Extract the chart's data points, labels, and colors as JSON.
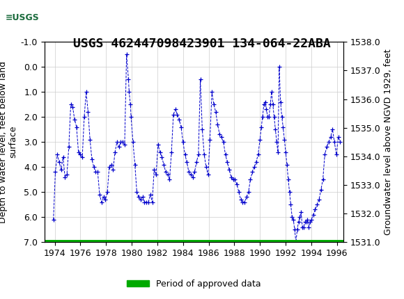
{
  "title": "USGS 462447098423901 134-064-22ABA",
  "ylabel_left": "Depth to water level, feet below land\nsurface",
  "ylabel_right": "Groundwater level above NGVD 1929, feet",
  "ylim_left": [
    7.0,
    -1.0
  ],
  "ylim_right": [
    1531.0,
    1538.0
  ],
  "yticks_left": [
    -1.0,
    0.0,
    1.0,
    2.0,
    3.0,
    4.0,
    5.0,
    6.0,
    7.0
  ],
  "yticks_right": [
    1531.0,
    1532.0,
    1533.0,
    1534.0,
    1535.0,
    1536.0,
    1537.0,
    1538.0
  ],
  "xticks": [
    1974,
    1976,
    1978,
    1980,
    1982,
    1984,
    1986,
    1988,
    1990,
    1992,
    1994,
    1996
  ],
  "xlim": [
    1973.2,
    1996.5
  ],
  "header_color": "#1a6b3c",
  "line_color": "#0000cc",
  "approved_color": "#00aa00",
  "plot_bg_color": "#ffffff",
  "grid_color": "#cccccc",
  "title_fontsize": 13,
  "axis_label_fontsize": 9,
  "tick_fontsize": 9,
  "legend_label": "Period of approved data",
  "x": [
    1973.9,
    1974.05,
    1974.2,
    1974.35,
    1974.5,
    1974.65,
    1974.8,
    1974.95,
    1975.1,
    1975.25,
    1975.4,
    1975.55,
    1975.7,
    1975.85,
    1976.0,
    1976.15,
    1976.3,
    1976.45,
    1976.6,
    1976.75,
    1976.9,
    1977.05,
    1977.2,
    1977.35,
    1977.5,
    1977.65,
    1977.8,
    1977.95,
    1978.1,
    1978.25,
    1978.4,
    1978.55,
    1978.7,
    1978.85,
    1979.0,
    1979.15,
    1979.3,
    1979.45,
    1979.6,
    1979.75,
    1979.8,
    1979.9,
    1979.95,
    1980.1,
    1980.25,
    1980.4,
    1980.55,
    1980.7,
    1980.85,
    1981.0,
    1981.15,
    1981.3,
    1981.45,
    1981.6,
    1981.75,
    1981.9,
    1982.05,
    1982.2,
    1982.35,
    1982.5,
    1982.65,
    1982.8,
    1982.95,
    1983.1,
    1983.25,
    1983.4,
    1983.55,
    1983.7,
    1983.85,
    1984.0,
    1984.15,
    1984.3,
    1984.45,
    1984.6,
    1984.75,
    1984.9,
    1985.05,
    1985.2,
    1985.35,
    1985.5,
    1985.65,
    1985.8,
    1985.95,
    1986.1,
    1986.25,
    1986.4,
    1986.55,
    1986.7,
    1986.85,
    1987.0,
    1987.15,
    1987.3,
    1987.45,
    1987.6,
    1987.75,
    1987.9,
    1988.05,
    1988.2,
    1988.35,
    1988.5,
    1988.65,
    1988.8,
    1988.95,
    1989.1,
    1989.25,
    1989.4,
    1989.55,
    1989.7,
    1989.85,
    1990.0,
    1990.1,
    1990.2,
    1990.3,
    1990.4,
    1990.5,
    1990.6,
    1990.7,
    1990.8,
    1990.9,
    1991.0,
    1991.1,
    1991.2,
    1991.3,
    1991.4,
    1991.5,
    1991.6,
    1991.7,
    1991.8,
    1991.9,
    1992.0,
    1992.1,
    1992.2,
    1992.3,
    1992.4,
    1992.5,
    1992.6,
    1992.7,
    1992.8,
    1992.9,
    1993.0,
    1993.1,
    1993.2,
    1993.3,
    1993.4,
    1993.5,
    1993.6,
    1993.7,
    1993.8,
    1993.9,
    1994.0,
    1994.15,
    1994.3,
    1994.45,
    1994.6,
    1994.75,
    1994.9,
    1995.05,
    1995.2,
    1995.35,
    1995.5,
    1995.65,
    1995.8,
    1995.95,
    1996.1,
    1996.25
  ],
  "y": [
    6.1,
    4.2,
    3.5,
    3.8,
    4.1,
    3.6,
    4.4,
    4.3,
    3.2,
    1.5,
    1.6,
    2.1,
    2.4,
    3.4,
    3.5,
    3.6,
    2.0,
    1.0,
    1.8,
    2.9,
    3.7,
    4.0,
    4.2,
    4.2,
    5.1,
    5.4,
    5.2,
    5.3,
    5.0,
    4.0,
    3.9,
    4.1,
    3.4,
    3.0,
    3.2,
    3.0,
    3.0,
    3.1,
    -0.5,
    0.5,
    1.0,
    1.5,
    2.0,
    3.0,
    3.9,
    5.0,
    5.2,
    5.3,
    5.2,
    5.4,
    5.4,
    5.4,
    5.1,
    5.4,
    4.1,
    4.3,
    3.1,
    3.4,
    3.6,
    3.9,
    4.2,
    4.3,
    4.5,
    3.4,
    1.9,
    1.7,
    1.9,
    2.1,
    2.4,
    3.0,
    3.5,
    3.8,
    4.2,
    4.3,
    4.4,
    4.2,
    3.8,
    3.5,
    0.5,
    2.5,
    3.5,
    4.0,
    4.3,
    2.9,
    1.0,
    1.5,
    1.8,
    2.3,
    2.7,
    2.8,
    3.0,
    3.5,
    3.8,
    4.1,
    4.4,
    4.5,
    4.5,
    4.7,
    5.0,
    5.3,
    5.4,
    5.4,
    5.2,
    5.0,
    4.5,
    4.2,
    4.0,
    3.8,
    3.5,
    2.9,
    2.4,
    2.0,
    1.5,
    1.4,
    1.7,
    2.0,
    2.0,
    1.5,
    1.0,
    1.5,
    2.0,
    2.5,
    3.0,
    3.4,
    0.0,
    1.4,
    2.0,
    2.4,
    2.9,
    3.4,
    3.9,
    4.5,
    5.0,
    5.5,
    6.0,
    6.1,
    6.5,
    7.0,
    6.5,
    6.2,
    6.0,
    5.8,
    6.4,
    6.4,
    6.2,
    6.2,
    6.1,
    6.4,
    6.2,
    6.1,
    5.9,
    5.7,
    5.5,
    5.3,
    4.9,
    4.5,
    3.5,
    3.2,
    3.0,
    2.8,
    2.5,
    3.0,
    3.5,
    2.8,
    3.0
  ]
}
